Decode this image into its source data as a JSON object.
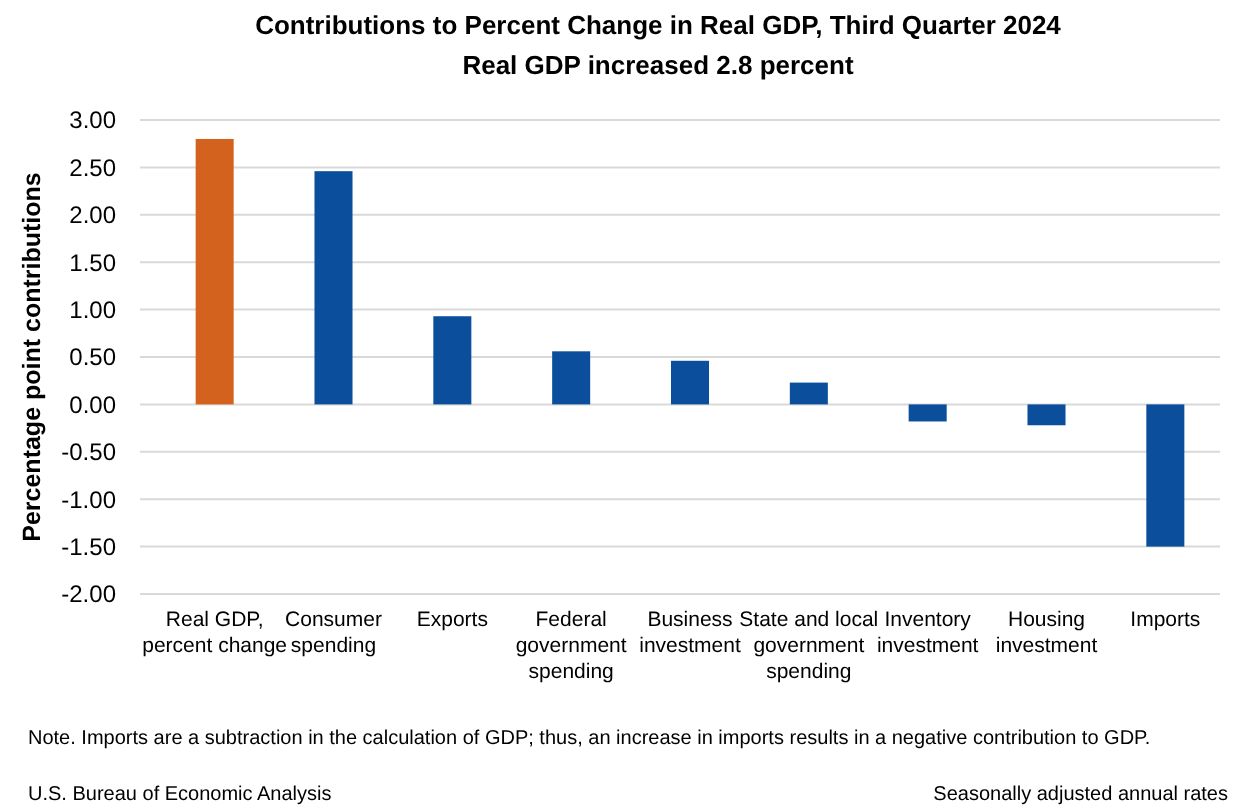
{
  "chart_data": {
    "type": "bar",
    "title": "Contributions to Percent Change in Real GDP, Third Quarter 2024",
    "subtitle": "Real GDP increased 2.8 percent",
    "ylabel": "Percentage point contributions",
    "categories": [
      "Real GDP, percent change",
      "Consumer spending",
      "Exports",
      "Federal government spending",
      "Business investment",
      "State and local government spending",
      "Inventory investment",
      "Housing investment",
      "Imports"
    ],
    "values": [
      2.8,
      2.46,
      0.93,
      0.56,
      0.46,
      0.23,
      -0.18,
      -0.22,
      -1.5
    ],
    "colors": [
      "#d4621f",
      "#0b4f9c",
      "#0b4f9c",
      "#0b4f9c",
      "#0b4f9c",
      "#0b4f9c",
      "#0b4f9c",
      "#0b4f9c",
      "#0b4f9c"
    ],
    "ylim": [
      -2,
      3
    ],
    "yticks": [
      {
        "value": -2,
        "label": "-2.00"
      },
      {
        "value": -1.5,
        "label": "-1.50"
      },
      {
        "value": -1,
        "label": "-1.00"
      },
      {
        "value": -0.5,
        "label": "-0.50"
      },
      {
        "value": 0,
        "label": "0.00"
      },
      {
        "value": 0.5,
        "label": "0.50"
      },
      {
        "value": 1,
        "label": "1.00"
      },
      {
        "value": 1.5,
        "label": "1.50"
      },
      {
        "value": 2,
        "label": "2.00"
      },
      {
        "value": 2.5,
        "label": "2.50"
      },
      {
        "value": 3,
        "label": "3.00"
      }
    ],
    "grid": "y",
    "annotations": [
      "Note. Imports are a subtraction in the calculation of GDP; thus, an increase in imports results in a negative contribution to GDP.",
      "U.S. Bureau of Economic Analysis",
      "Seasonally adjusted annual rates"
    ]
  }
}
